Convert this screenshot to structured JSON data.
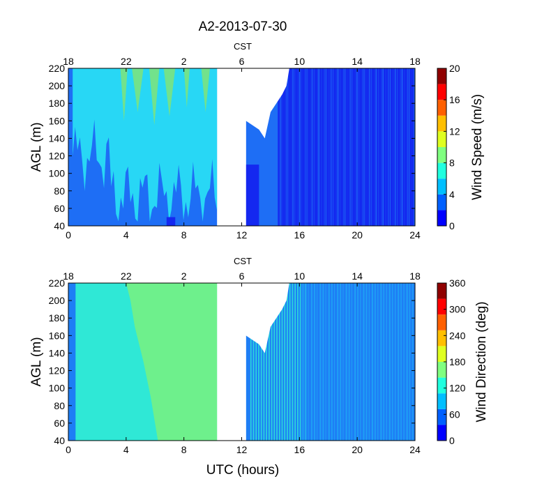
{
  "chart_data": [
    {
      "type": "heatmap",
      "title": "A2-2013-07-30",
      "top_axis_label": "CST",
      "top_ticks": [
        "18",
        "22",
        "2",
        "6",
        "10",
        "14",
        "18"
      ],
      "x_ticks": [
        "0",
        "4",
        "8",
        "12",
        "16",
        "20",
        "24"
      ],
      "xlim": [
        0,
        24
      ],
      "ylabel": "AGL (m)",
      "y_ticks": [
        "40",
        "60",
        "80",
        "100",
        "120",
        "140",
        "160",
        "180",
        "200",
        "220"
      ],
      "ylim": [
        40,
        220
      ],
      "colorbar_label": "Wind Speed (m/s)",
      "colorbar_ticks": [
        "0",
        "4",
        "8",
        "12",
        "16",
        "20"
      ],
      "clim": [
        0,
        20
      ],
      "missing_data_utc_hours": [
        10.3,
        12.3
      ],
      "regions_m_per_s": [
        {
          "utc_start": 0,
          "utc_end": 10.3,
          "agl_min": 40,
          "agl_max": 220,
          "speed": 5
        },
        {
          "utc_start": 0.2,
          "utc_end": 10.3,
          "agl_min": 90,
          "agl_max": 220,
          "speed": 8
        },
        {
          "utc_start": 3.5,
          "utc_end": 9.5,
          "agl_min": 180,
          "agl_max": 220,
          "speed": 10
        },
        {
          "utc_start": 12.3,
          "utc_end": 15.0,
          "agl_min": 40,
          "agl_max": 180,
          "speed": 5
        },
        {
          "utc_start": 15.0,
          "utc_end": 24,
          "agl_min": 40,
          "agl_max": 220,
          "speed": 3
        }
      ]
    },
    {
      "type": "heatmap",
      "top_axis_label": "CST",
      "top_ticks": [
        "18",
        "22",
        "2",
        "6",
        "10",
        "14",
        "18"
      ],
      "x_ticks": [
        "0",
        "4",
        "8",
        "12",
        "16",
        "20",
        "24"
      ],
      "xlim": [
        0,
        24
      ],
      "xlabel": "UTC (hours)",
      "ylabel": "AGL (m)",
      "y_ticks": [
        "40",
        "60",
        "80",
        "100",
        "120",
        "140",
        "160",
        "180",
        "200",
        "220"
      ],
      "ylim": [
        40,
        220
      ],
      "colorbar_label": "Wind Direction (deg)",
      "colorbar_ticks": [
        "0",
        "60",
        "120",
        "180",
        "240",
        "300",
        "360"
      ],
      "clim": [
        0,
        360
      ],
      "missing_data_utc_hours": [
        10.3,
        12.3
      ],
      "regions_deg": [
        {
          "utc_start": 0,
          "utc_end": 10.3,
          "agl_min": 40,
          "agl_max": 220,
          "direction": 150
        },
        {
          "utc_start": 4.0,
          "utc_end": 10.3,
          "agl_min": 40,
          "agl_max": 220,
          "direction": 175
        },
        {
          "utc_start": 12.3,
          "utc_end": 15.5,
          "agl_min": 40,
          "agl_max": 170,
          "direction": 125
        },
        {
          "utc_start": 15.5,
          "utc_end": 24,
          "agl_min": 40,
          "agl_max": 220,
          "direction": 105
        }
      ]
    }
  ],
  "colors": {
    "jet": [
      "#00008f",
      "#0000ff",
      "#0060ff",
      "#00bfff",
      "#20ffdf",
      "#80ff80",
      "#dfff20",
      "#ffbf00",
      "#ff6000",
      "#ff0000",
      "#8f0000"
    ],
    "speed_fills": {
      "slow": "#1428f0",
      "medium": "#1e6ef5",
      "fast": "#28d7f5",
      "fastest": "#72e28c"
    },
    "direction_fills": {
      "east": "#1e7ef5",
      "southeast": "#1ea0f5",
      "south_east_south": "#2fe8d6",
      "south": "#6ef08c"
    },
    "missing": "#ffffff"
  }
}
